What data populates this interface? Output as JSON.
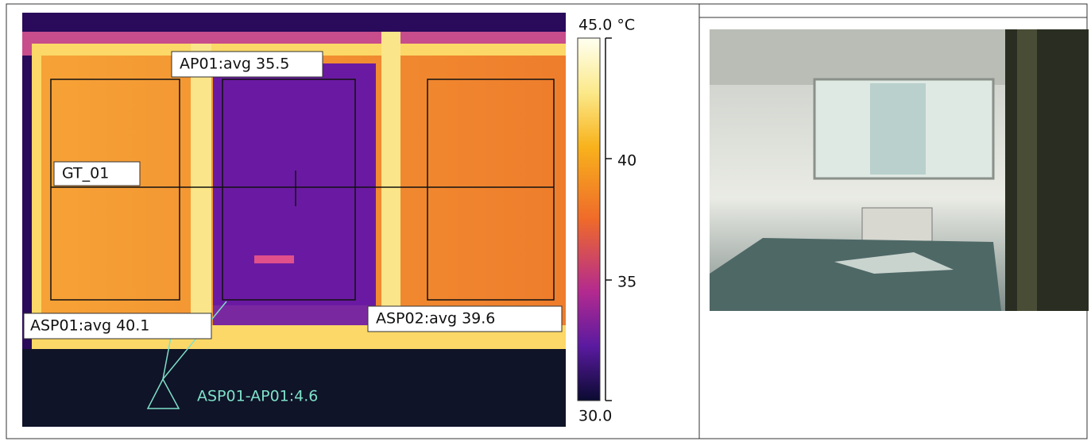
{
  "thermal": {
    "labels": {
      "ap01": "AP01:avg 35.5",
      "gt01": "GT_01",
      "asp01": "ASP01:avg 40.1",
      "asp02": "ASP02:avg 39.6",
      "delta": "ASP01-AP01:4.6"
    },
    "scale": {
      "max": "45.0 °C",
      "mid_high": "40",
      "mid_low": "35",
      "min": "30.0"
    }
  }
}
